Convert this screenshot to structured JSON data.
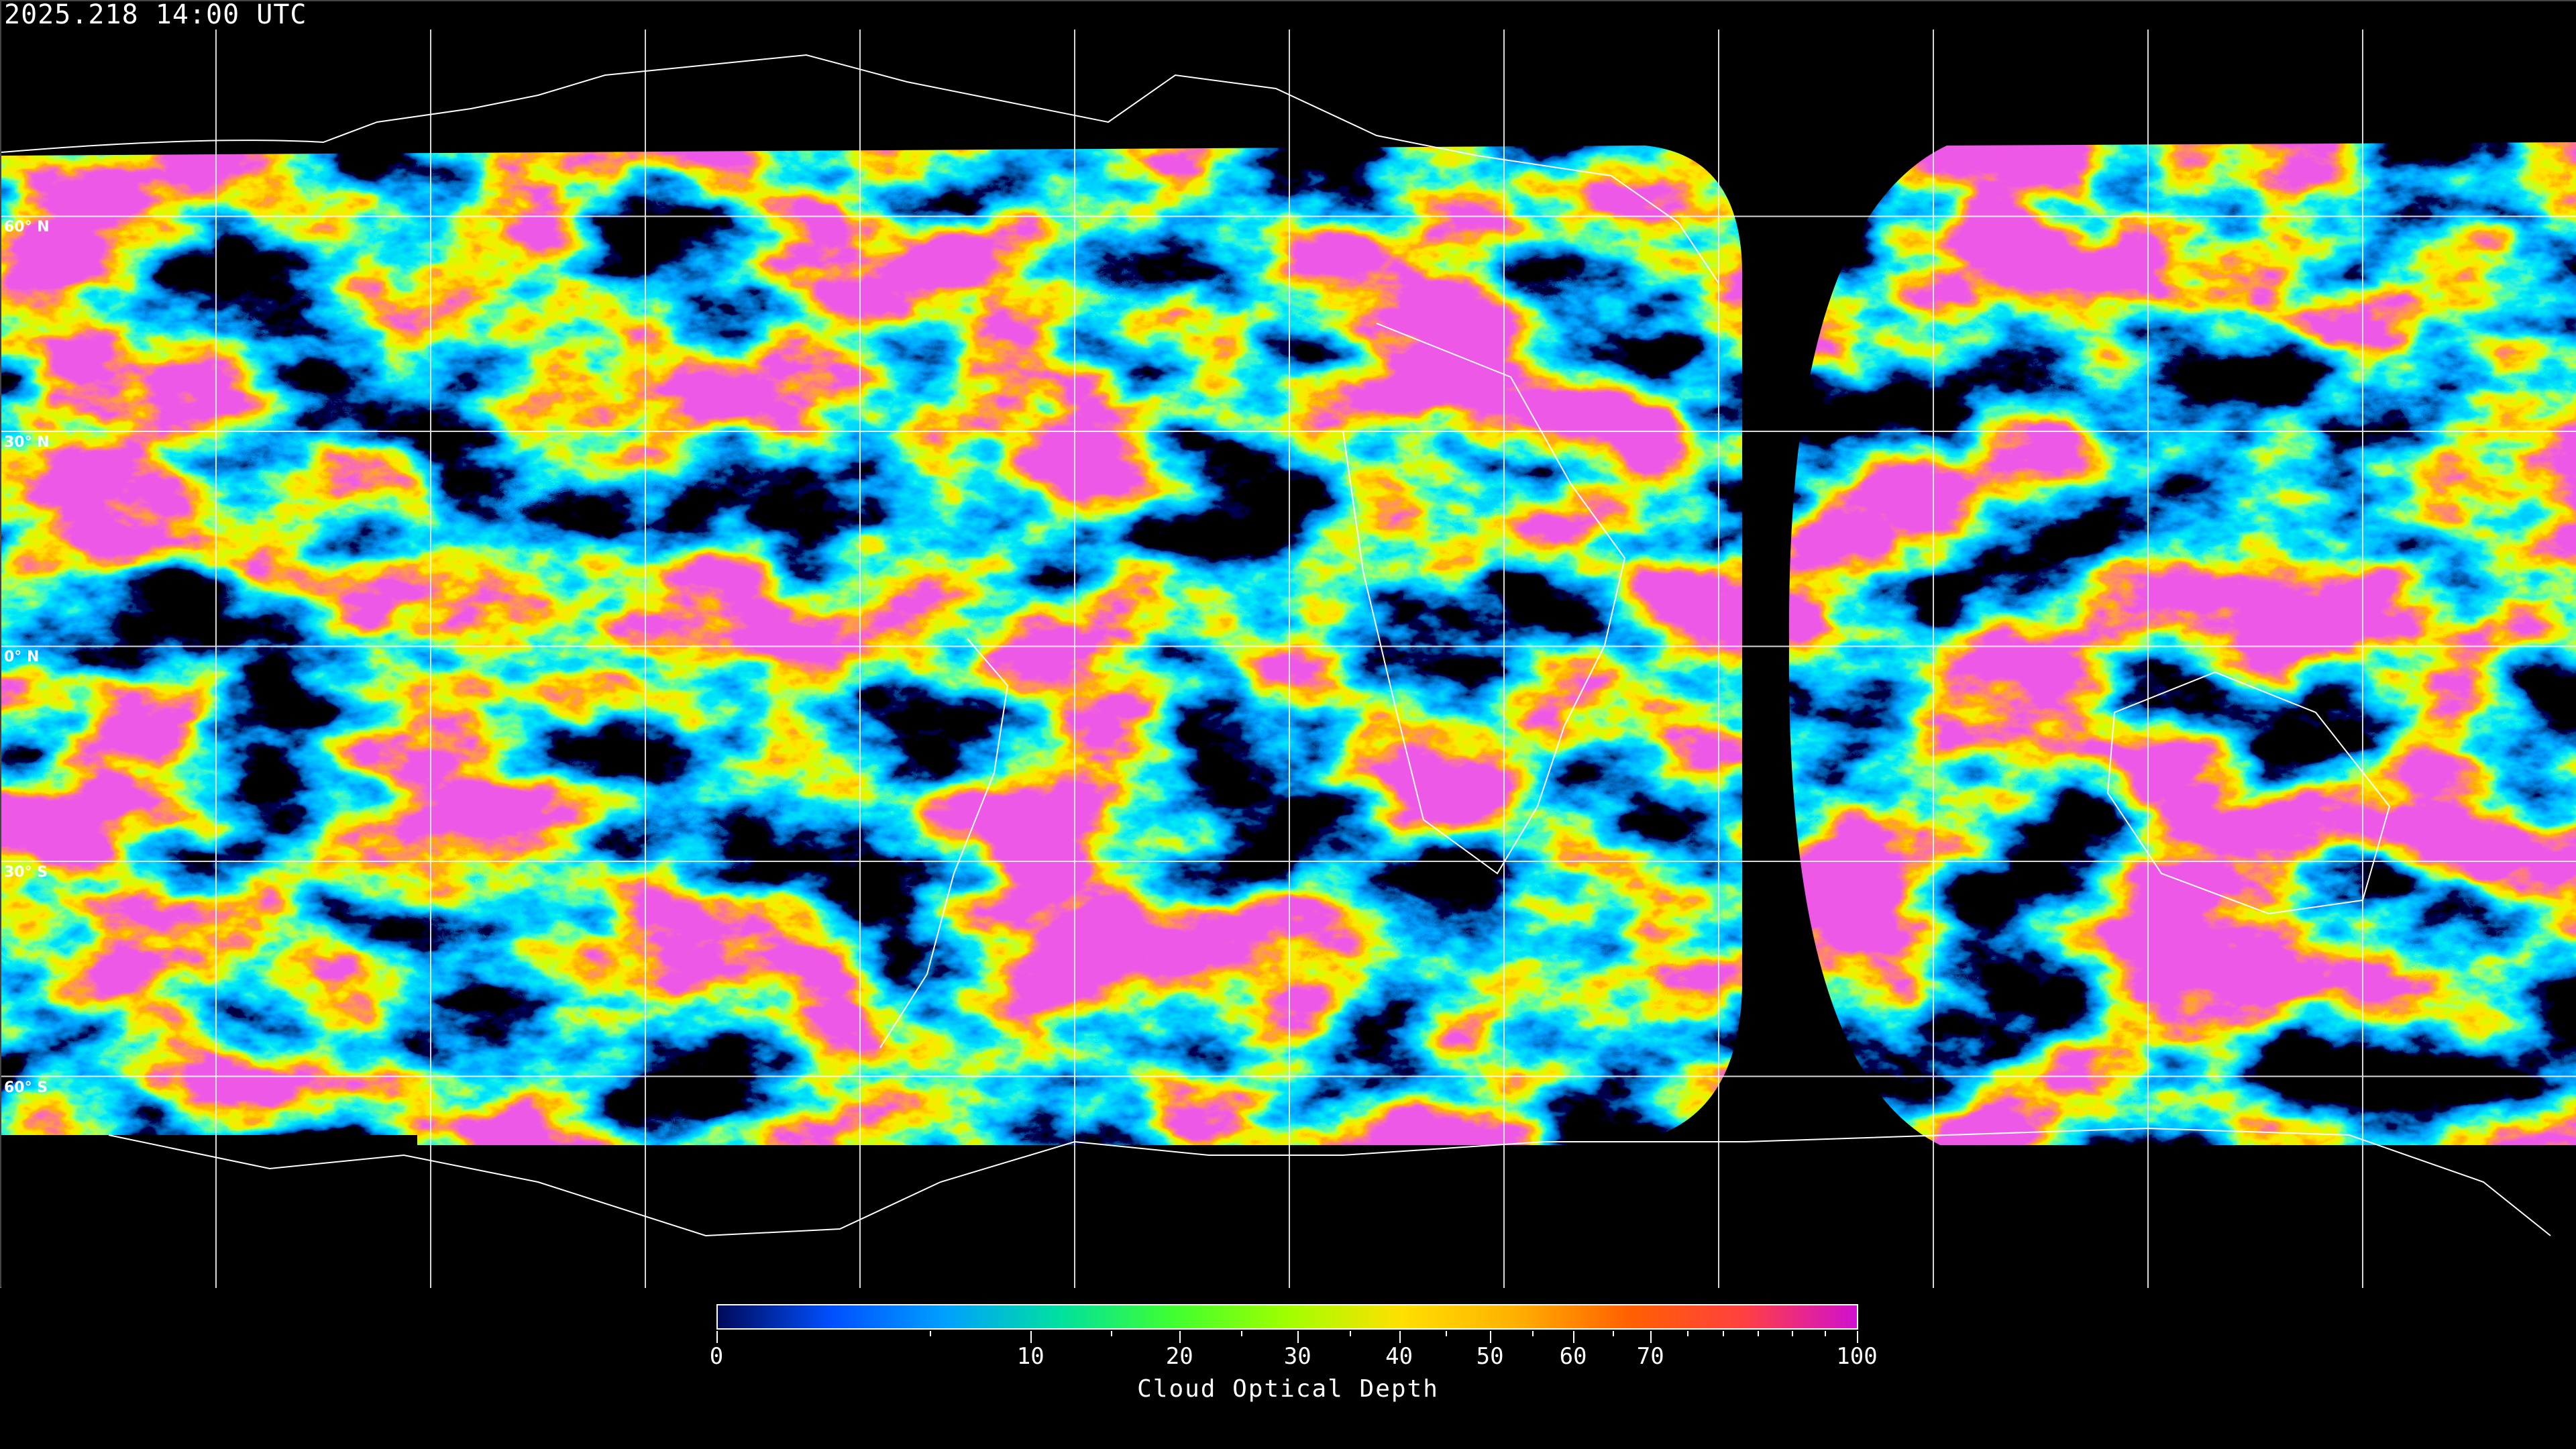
{
  "header": {
    "timestamp": "2025.218 14:00 UTC"
  },
  "map": {
    "projection": "equirectangular",
    "latitude_labels": [
      "60° N",
      "30° N",
      "0° N",
      "30° S",
      "60° S"
    ],
    "background_color": "#000000",
    "grid_color": "#ffffff",
    "coastline_color": "#ffffff"
  },
  "colorbar": {
    "label": "Cloud Optical Depth",
    "min": 0,
    "max": 100,
    "tick_labels": [
      "0",
      "10",
      "20",
      "30",
      "40",
      "50",
      "60",
      "70",
      "100"
    ],
    "colors": [
      "#000a5a",
      "#0050ff",
      "#00a0ff",
      "#00e0a0",
      "#40ff30",
      "#a0ff00",
      "#ffe000",
      "#ffb000",
      "#ff6000",
      "#ff4040",
      "#d010d0"
    ]
  }
}
